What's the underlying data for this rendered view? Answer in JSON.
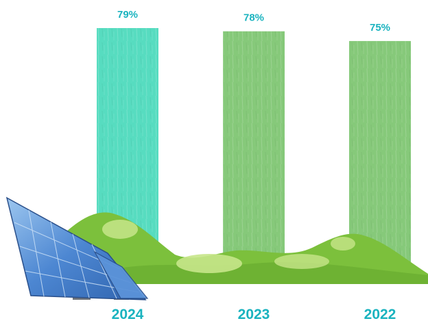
{
  "chart_data": {
    "type": "bar",
    "title": "",
    "xlabel": "",
    "ylabel": "",
    "categories": [
      "2024",
      "2023",
      "2022"
    ],
    "values": [
      79,
      78,
      75
    ],
    "value_labels": [
      "79%",
      "78%",
      "75%"
    ],
    "unit": "%",
    "grid": false,
    "legend": "none",
    "bar_colors": [
      "#57dcc0",
      "#86c97a",
      "#86c97a"
    ],
    "label_color": "#1ab3bf",
    "category_label_color": "#1ab3bf"
  },
  "illustration": {
    "hills_color": "#7cc03c",
    "hills_highlight_color": "#c7e58a",
    "solar_panel_color": "#3f78c8",
    "icons": [
      "solar-panel-icon",
      "hills-illustration"
    ]
  }
}
